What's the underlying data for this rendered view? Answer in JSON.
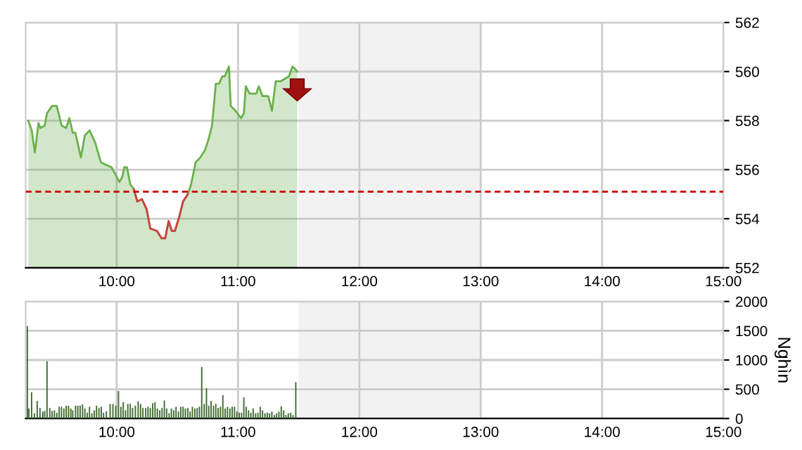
{
  "chart_data": [
    {
      "type": "area",
      "xlim": [
        9.25,
        15
      ],
      "ylim": [
        552,
        562
      ],
      "yticks": [
        552,
        554,
        556,
        558,
        560,
        562
      ],
      "xticks": [
        {
          "value": 10,
          "label": "10:00"
        },
        {
          "value": 11,
          "label": "11:00"
        },
        {
          "value": 12,
          "label": "12:00"
        },
        {
          "value": 13,
          "label": "13:00"
        },
        {
          "value": 14,
          "label": "14:00"
        },
        {
          "value": 15,
          "label": "15:00"
        }
      ],
      "grid": true,
      "legend": false,
      "ref_lines": [
        {
          "axis": "y",
          "value": 555.1,
          "color": "#cc0000",
          "line_style": "dashed"
        }
      ],
      "bands": [
        {
          "axis": "x",
          "from": 11.5,
          "to": 13,
          "color": "#f2f2f2"
        }
      ],
      "series": [
        {
          "color": "#6ab04c",
          "x": [
            9.272,
            9.3,
            9.326,
            9.356,
            9.372,
            9.407,
            9.426,
            9.468,
            9.506,
            9.546,
            9.584,
            9.61,
            9.638,
            9.66,
            9.705,
            9.738,
            9.777,
            9.823,
            9.87,
            9.908,
            9.958,
            10.023,
            10.046,
            10.062,
            10.085,
            10.112,
            10.142,
            10.17,
            10.208,
            10.246,
            10.277,
            10.332,
            10.37,
            10.4,
            10.428,
            10.455,
            10.48,
            10.517,
            10.547,
            10.586,
            10.613,
            10.651,
            10.69,
            10.728,
            10.755,
            10.786,
            10.817,
            10.844,
            10.87,
            10.89,
            10.925,
            10.94,
            10.979,
            11.025,
            11.048,
            11.064,
            11.095,
            11.123,
            11.15,
            11.171,
            11.202,
            11.249,
            11.28,
            11.31,
            11.35,
            11.384,
            11.419,
            11.449,
            11.472,
            11.488
          ],
          "values": [
            558.0,
            557.6,
            556.7,
            557.9,
            557.7,
            557.8,
            558.3,
            558.6,
            558.6,
            557.8,
            557.7,
            558.1,
            557.5,
            557.5,
            556.5,
            557.4,
            557.6,
            557.1,
            556.3,
            556.2,
            556.1,
            555.5,
            555.7,
            556.1,
            556.1,
            555.4,
            555.2,
            554.7,
            554.8,
            554.4,
            553.6,
            553.5,
            553.2,
            553.2,
            553.9,
            553.5,
            553.5,
            554.1,
            554.7,
            555.0,
            555.4,
            556.3,
            556.5,
            556.8,
            557.2,
            557.8,
            559.5,
            559.5,
            559.8,
            559.8,
            560.2,
            558.6,
            558.4,
            558.1,
            558.3,
            559.4,
            559.1,
            559.1,
            559.1,
            559.4,
            559.0,
            559.0,
            558.4,
            559.6,
            559.6,
            559.7,
            559.8,
            560.2,
            560.1,
            560.0
          ]
        },
        {
          "type": "line",
          "color": "#d04040",
          "x": [
            10.142,
            10.17,
            10.208,
            10.246,
            10.277,
            10.332,
            10.37,
            10.4,
            10.428,
            10.455,
            10.48,
            10.517,
            10.547,
            10.586
          ],
          "values": [
            555.2,
            554.7,
            554.8,
            554.4,
            553.6,
            553.5,
            553.2,
            553.2,
            553.9,
            553.5,
            553.5,
            554.1,
            554.7,
            555.0
          ]
        }
      ]
    },
    {
      "type": "bar",
      "xlim": [
        9.25,
        15
      ],
      "ylim": [
        0,
        2000
      ],
      "yticks": [
        0,
        500,
        1000,
        1500,
        2000
      ],
      "ylabel": "Nghìn",
      "xticks": [
        {
          "value": 10,
          "label": "10:00"
        },
        {
          "value": 11,
          "label": "11:00"
        },
        {
          "value": 12,
          "label": "12:00"
        },
        {
          "value": 13,
          "label": "13:00"
        },
        {
          "value": 14,
          "label": "14:00"
        },
        {
          "value": 15,
          "label": "15:00"
        }
      ],
      "grid": true,
      "legend": false,
      "bands": [
        {
          "axis": "x",
          "from": 11.5,
          "to": 13,
          "color": "#f2f2f2"
        }
      ],
      "series": [
        {
          "color": "#3f6b32",
          "x": [
            9.264,
            9.276,
            9.299,
            9.322,
            9.345,
            9.368,
            9.391,
            9.407,
            9.426,
            9.449,
            9.468,
            9.487,
            9.507,
            9.526,
            9.545,
            9.565,
            9.584,
            9.603,
            9.622,
            9.638,
            9.661,
            9.68,
            9.699,
            9.719,
            9.738,
            9.757,
            9.776,
            9.796,
            9.815,
            9.834,
            9.854,
            9.873,
            9.892,
            9.915,
            9.946,
            9.969,
            9.992,
            10.015,
            10.035,
            10.054,
            10.073,
            10.092,
            10.112,
            10.131,
            10.154,
            10.177,
            10.197,
            10.216,
            10.239,
            10.258,
            10.277,
            10.297,
            10.316,
            10.335,
            10.355,
            10.374,
            10.393,
            10.412,
            10.432,
            10.451,
            10.47,
            10.489,
            10.509,
            10.528,
            10.547,
            10.566,
            10.586,
            10.605,
            10.624,
            10.644,
            10.663,
            10.682,
            10.701,
            10.721,
            10.74,
            10.759,
            10.778,
            10.798,
            10.817,
            10.836,
            10.855,
            10.875,
            10.894,
            10.913,
            10.933,
            10.952,
            10.971,
            10.99,
            11.01,
            11.029,
            11.048,
            11.067,
            11.087,
            11.106,
            11.125,
            11.145,
            11.164,
            11.183,
            11.202,
            11.222,
            11.241,
            11.26,
            11.279,
            11.299,
            11.318,
            11.337,
            11.356,
            11.376,
            11.395,
            11.414,
            11.434,
            11.453,
            11.476
          ],
          "values": [
            1580,
            170,
            450,
            90,
            300,
            180,
            120,
            130,
            980,
            180,
            130,
            140,
            100,
            200,
            200,
            170,
            220,
            220,
            170,
            140,
            220,
            220,
            220,
            240,
            170,
            100,
            200,
            90,
            140,
            220,
            180,
            200,
            100,
            120,
            250,
            250,
            220,
            470,
            200,
            280,
            140,
            250,
            250,
            180,
            220,
            290,
            250,
            180,
            180,
            200,
            180,
            260,
            280,
            170,
            140,
            180,
            310,
            170,
            90,
            170,
            140,
            200,
            120,
            200,
            200,
            170,
            180,
            120,
            200,
            170,
            180,
            200,
            880,
            250,
            520,
            220,
            300,
            220,
            250,
            180,
            200,
            400,
            170,
            200,
            170,
            200,
            200,
            120,
            100,
            100,
            360,
            200,
            140,
            100,
            170,
            90,
            100,
            200,
            140,
            90,
            100,
            90,
            120,
            60,
            90,
            120,
            210,
            140,
            60,
            90,
            100,
            60,
            620
          ]
        }
      ]
    }
  ]
}
